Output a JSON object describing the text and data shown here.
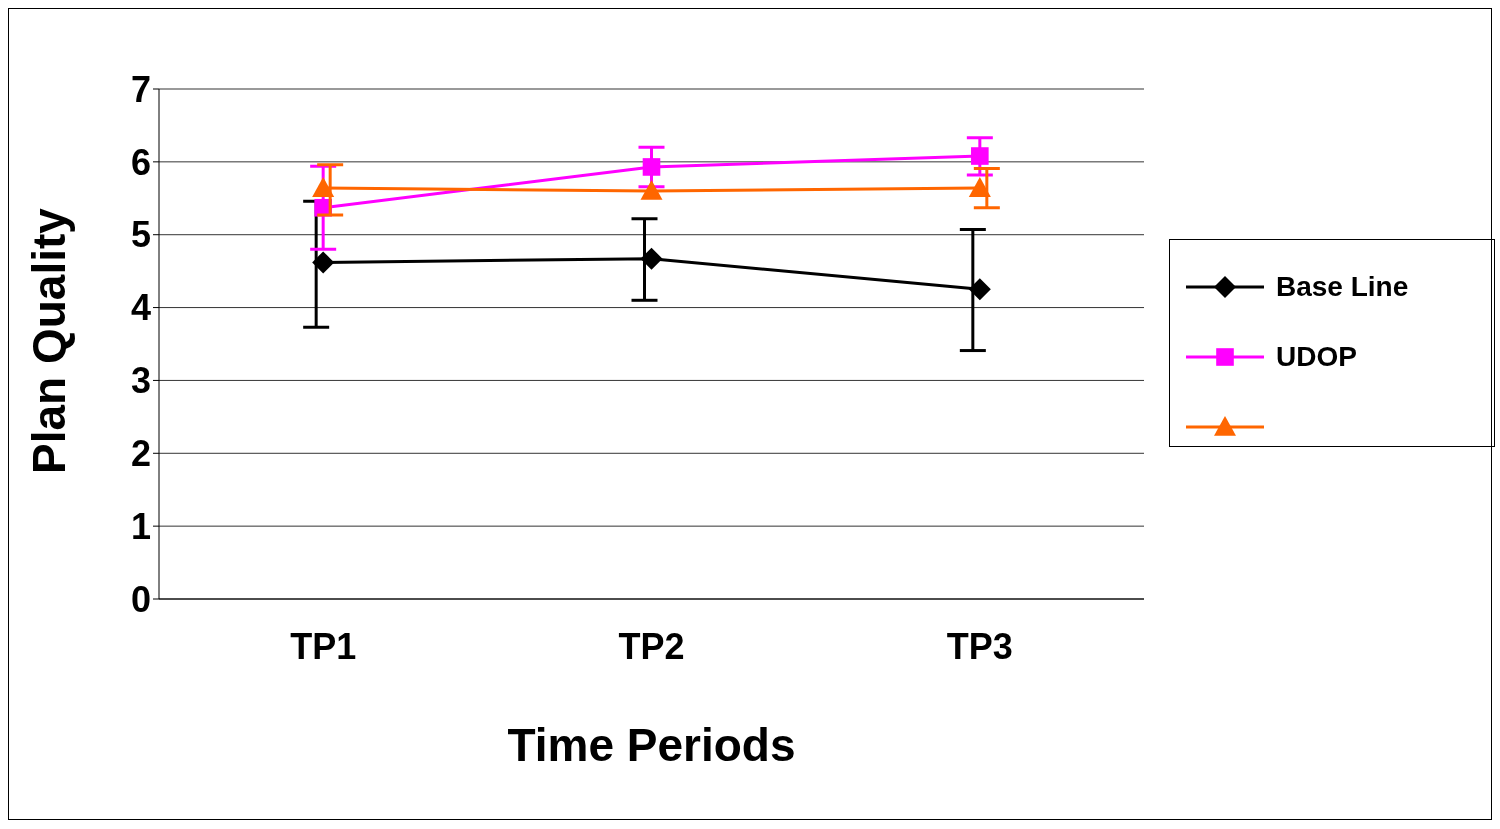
{
  "chart_data": {
    "type": "line",
    "xlabel": "Time Periods",
    "ylabel": "Plan Quality",
    "categories": [
      "TP1",
      "TP2",
      "TP3"
    ],
    "series": [
      {
        "name": "Base Line",
        "color": "#000000",
        "marker": "diamond",
        "values": [
          4.62,
          4.67,
          4.25
        ],
        "errors": [
          [
            3.73,
            5.46
          ],
          [
            4.1,
            5.22
          ],
          [
            3.41,
            5.07
          ]
        ]
      },
      {
        "name": "UDOP",
        "color": "#ff00ff",
        "marker": "square",
        "values": [
          5.37,
          5.93,
          6.08
        ],
        "errors": [
          [
            4.8,
            5.94
          ],
          [
            5.66,
            6.2
          ],
          [
            5.82,
            6.33
          ]
        ]
      },
      {
        "color": "#ff6600",
        "marker": "triangle",
        "values": [
          5.64,
          5.6,
          5.64
        ],
        "errors": [
          [
            5.27,
            5.96
          ],
          null,
          [
            5.37,
            5.91
          ]
        ]
      }
    ],
    "ylim": [
      0,
      7
    ],
    "yticks": [
      0,
      1,
      2,
      3,
      4,
      5,
      6,
      7
    ],
    "grid": "y",
    "legend": "right"
  }
}
